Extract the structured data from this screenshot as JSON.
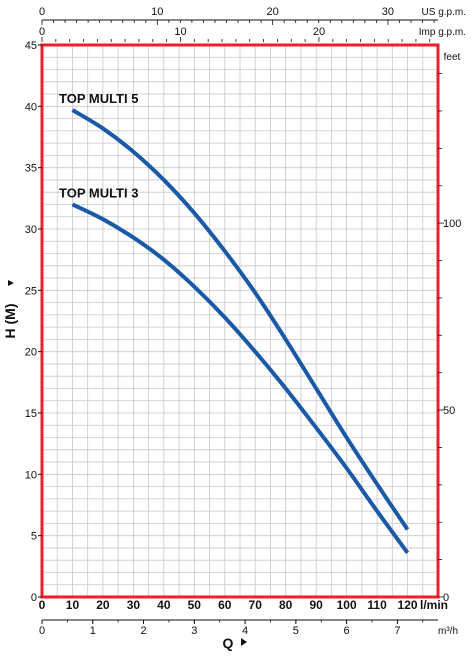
{
  "chart_data": {
    "type": "line",
    "title": "",
    "xlabel": "Q",
    "ylabel": "H (M)",
    "x_unit": "l/min",
    "xlim": [
      0,
      130
    ],
    "ylim": [
      0,
      45
    ],
    "grid": true,
    "x_ticks": [
      "0",
      "10",
      "20",
      "30",
      "40",
      "50",
      "60",
      "70",
      "80",
      "90",
      "100",
      "110",
      "120"
    ],
    "y_ticks": [
      "0",
      "5",
      "10",
      "15",
      "20",
      "25",
      "30",
      "35",
      "40",
      "45"
    ],
    "secondary_axes": {
      "top_us_gpm": {
        "unit": "US g.p.m.",
        "ticks": [
          "0",
          "10",
          "20",
          "30"
        ]
      },
      "top_imp_gpm": {
        "unit": "Imp g.p.m.",
        "ticks": [
          "0",
          "10",
          "20"
        ]
      },
      "bottom_m3h": {
        "unit": "m³/h",
        "ticks": [
          "0",
          "1",
          "2",
          "3",
          "4",
          "5",
          "6",
          "7"
        ]
      },
      "right_feet": {
        "unit": "feet",
        "ticks": [
          "0",
          "50",
          "100"
        ]
      }
    },
    "series": [
      {
        "name": "TOP MULTI 5",
        "color": "#1a58a8",
        "x": [
          10,
          20,
          30,
          40,
          50,
          60,
          70,
          80,
          90,
          100,
          110,
          120
        ],
        "y": [
          39.7,
          38.2,
          36.3,
          34.0,
          31.3,
          28.2,
          24.8,
          21.0,
          17.0,
          13.0,
          9.2,
          5.5
        ]
      },
      {
        "name": "TOP MULTI 3",
        "color": "#1a58a8",
        "x": [
          10,
          20,
          30,
          40,
          50,
          60,
          70,
          80,
          90,
          100,
          110,
          120
        ],
        "y": [
          32.0,
          30.8,
          29.3,
          27.5,
          25.3,
          22.8,
          20.0,
          17.0,
          13.8,
          10.5,
          7.0,
          3.6
        ]
      }
    ]
  }
}
